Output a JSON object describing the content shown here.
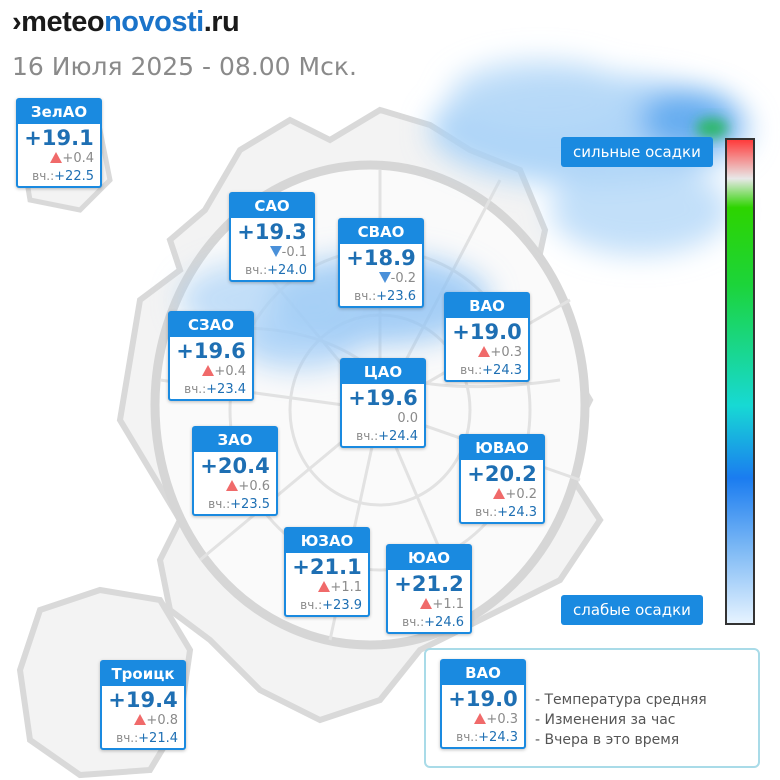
{
  "site": {
    "logo_part1": "meteo",
    "logo_part2": "novosti",
    "logo_part3": ".ru"
  },
  "date_line": "16 Июля 2025 - 08.00 Мск.",
  "districts": [
    {
      "id": "zelao",
      "name": "ЗелАО",
      "temp": "+19.1",
      "change": "+0.4",
      "trend": "up",
      "yesterday": "+22.5"
    },
    {
      "id": "sao",
      "name": "САО",
      "temp": "+19.3",
      "change": "-0.1",
      "trend": "down",
      "yesterday": "+24.0"
    },
    {
      "id": "svao",
      "name": "СВАО",
      "temp": "+18.9",
      "change": "-0.2",
      "trend": "down",
      "yesterday": "+23.6"
    },
    {
      "id": "vao",
      "name": "ВАО",
      "temp": "+19.0",
      "change": "+0.3",
      "trend": "up",
      "yesterday": "+24.3"
    },
    {
      "id": "szao",
      "name": "СЗАО",
      "temp": "+19.6",
      "change": "+0.4",
      "trend": "up",
      "yesterday": "+23.4"
    },
    {
      "id": "cao",
      "name": "ЦАО",
      "temp": "+19.6",
      "change": "0.0",
      "trend": "none",
      "yesterday": "+24.4"
    },
    {
      "id": "zao",
      "name": "ЗАО",
      "temp": "+20.4",
      "change": "+0.6",
      "trend": "up",
      "yesterday": "+23.5"
    },
    {
      "id": "yuvao",
      "name": "ЮВАО",
      "temp": "+20.2",
      "change": "+0.2",
      "trend": "up",
      "yesterday": "+24.3"
    },
    {
      "id": "yuzao",
      "name": "ЮЗАО",
      "temp": "+21.1",
      "change": "+1.1",
      "trend": "up",
      "yesterday": "+23.9"
    },
    {
      "id": "yuao",
      "name": "ЮАО",
      "temp": "+21.2",
      "change": "+1.1",
      "trend": "up",
      "yesterday": "+24.6"
    },
    {
      "id": "troitsk",
      "name": "Троицк",
      "temp": "+19.4",
      "change": "+0.8",
      "trend": "up",
      "yesterday": "+21.4"
    }
  ],
  "yesterday_prefix": "вч.:",
  "scale": {
    "top_label": "сильные осадки",
    "bottom_label": "слабые осадки"
  },
  "legend": {
    "sample": {
      "name": "ВАО",
      "temp": "+19.0",
      "change": "+0.3",
      "trend": "up",
      "yesterday": "+24.3"
    },
    "lines": [
      "- Температура средняя",
      "- Изменения за час",
      "- Вчера в это время"
    ]
  },
  "colors": {
    "accent": "#1a8ae0",
    "temp_text": "#1e6fb3",
    "up": "#f06a6a",
    "down": "#4a90d9"
  }
}
